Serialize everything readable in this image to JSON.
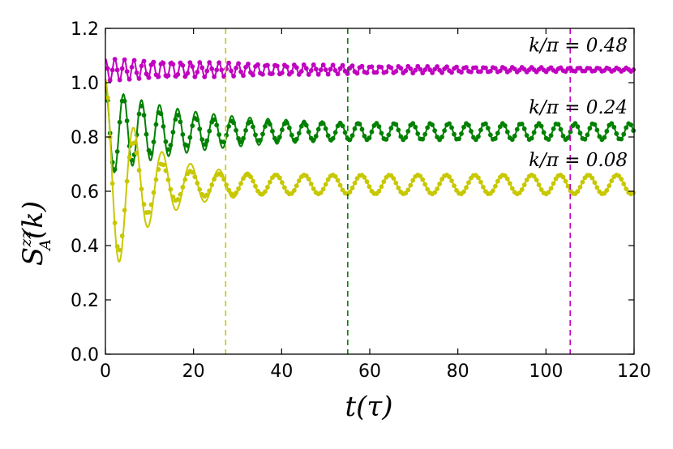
{
  "chart_data": {
    "type": "line",
    "xlabel": "t(τ)",
    "ylabel": "S_A^zz(k)",
    "ylabel_main": "S",
    "ylabel_sub": "A",
    "ylabel_sup": "zz",
    "ylabel_arg": "(k)",
    "xlim": [
      0,
      120
    ],
    "ylim": [
      0.0,
      1.2
    ],
    "xticks": [
      "0",
      "20",
      "40",
      "60",
      "80",
      "100",
      "120"
    ],
    "yticks": [
      "0.0",
      "0.2",
      "0.4",
      "0.6",
      "0.8",
      "1.0",
      "1.2"
    ],
    "grid": false,
    "series": [
      {
        "name": "k/π = 0.48",
        "label": "k/π = 0.48",
        "color": "#c000c0",
        "offset": 1.048,
        "amp_start": 0.04,
        "amp_end": 0.002,
        "period": 2.15,
        "decay_time": 55,
        "marker_spacing": 0.55,
        "threshold_t": 105.5
      },
      {
        "name": "k/π = 0.24",
        "label": "k/π = 0.24",
        "color": "#008000",
        "offset": 0.82,
        "amp_start": 0.165,
        "amp_end": 0.03,
        "period": 4.1,
        "decay_time": 18,
        "marker_spacing": 0.55,
        "marker_decay_time": 11,
        "threshold_t": 55.0
      },
      {
        "name": "k/π = 0.08",
        "label": "k/π = 0.08",
        "color": "#c8c800",
        "offset": 0.625,
        "amp_start": 0.39,
        "amp_end": 0.035,
        "period": 6.45,
        "decay_time": 9,
        "marker_spacing": 0.55,
        "marker_decay_time": 6,
        "threshold_t": 27.3
      }
    ]
  }
}
